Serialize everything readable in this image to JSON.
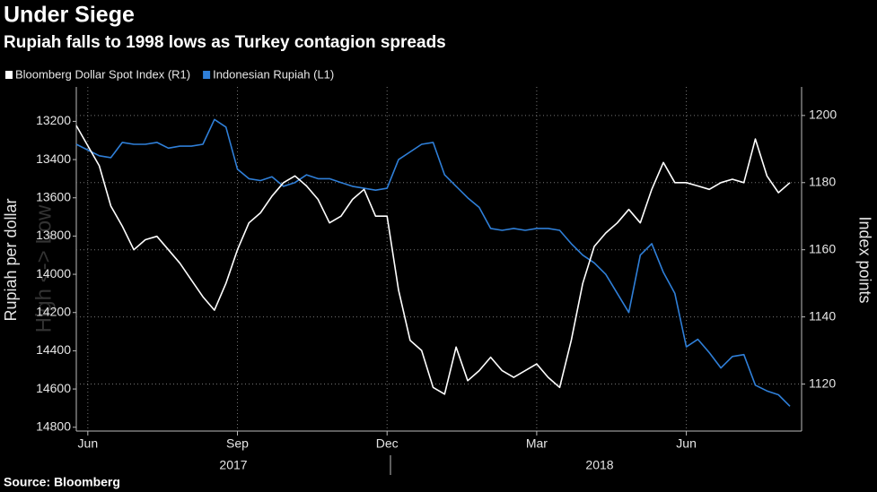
{
  "chart_data": {
    "type": "line",
    "title": "Under Siege",
    "subtitle": "Rupiah falls to 1998 lows as Turkey contagion spreads",
    "ylabel": "Rupiah per dollar",
    "y2label": "Index points",
    "annotation": "High <-> Low",
    "source": "Source: Bloomberg",
    "year_labels": [
      "2017",
      "2018"
    ],
    "legend": "top-left",
    "grid": true,
    "categories": [
      null,
      "Jun",
      null,
      null,
      null,
      null,
      null,
      null,
      null,
      null,
      null,
      null,
      null,
      null,
      "Sep",
      null,
      null,
      null,
      null,
      null,
      null,
      null,
      null,
      null,
      null,
      null,
      null,
      "Dec",
      null,
      null,
      null,
      null,
      null,
      null,
      null,
      null,
      null,
      null,
      null,
      null,
      "Mar",
      null,
      null,
      null,
      null,
      null,
      null,
      null,
      null,
      null,
      null,
      null,
      null,
      "Jun",
      null,
      null,
      null,
      null,
      null,
      null,
      null,
      null,
      null
    ],
    "ylim": [
      14820,
      13020
    ],
    "yticks": [
      13200,
      13400,
      13600,
      13800,
      14000,
      14200,
      14400,
      14600,
      14800
    ],
    "y2lim": [
      1106,
      1208.5
    ],
    "y2ticks": [
      1120,
      1140,
      1160,
      1180,
      1200
    ],
    "series": [
      {
        "name": "Bloomberg Dollar Spot Index (R1)",
        "color": "#ffffff",
        "axis": "y2",
        "values": [
          1197,
          1191,
          1185,
          1173,
          1167,
          1160,
          1163,
          1164,
          1160,
          1156,
          1151,
          1146,
          1142,
          1150,
          1160,
          1168,
          1171,
          1176,
          1180,
          1182,
          1179,
          1175,
          1168,
          1170,
          1175,
          1178,
          1170,
          1170,
          1148,
          1133,
          1130,
          1119,
          1117,
          1131,
          1121,
          1124,
          1128,
          1124,
          1122,
          1124,
          1126,
          1122,
          1119,
          1133,
          1150,
          1161,
          1165,
          1168,
          1172,
          1168,
          1178,
          1186,
          1180,
          1180,
          1179,
          1178,
          1180,
          1181,
          1180,
          1193,
          1182,
          1177,
          1180
        ]
      },
      {
        "name": "Indonesian Rupiah (L1)",
        "color": "#2f7fd8",
        "axis": "y",
        "values": [
          13320,
          13350,
          13380,
          13390,
          13310,
          13320,
          13320,
          13310,
          13340,
          13330,
          13330,
          13320,
          13190,
          13230,
          13450,
          13500,
          13510,
          13490,
          13540,
          13520,
          13480,
          13500,
          13500,
          13520,
          13540,
          13550,
          13560,
          13550,
          13400,
          13360,
          13320,
          13310,
          13480,
          13540,
          13600,
          13650,
          13760,
          13770,
          13760,
          13770,
          13760,
          13760,
          13770,
          13840,
          13900,
          13940,
          14000,
          14100,
          14200,
          13900,
          13840,
          13990,
          14100,
          14380,
          14340,
          14410,
          14490,
          14430,
          14420,
          14580,
          14610,
          14630,
          14690
        ]
      }
    ]
  }
}
